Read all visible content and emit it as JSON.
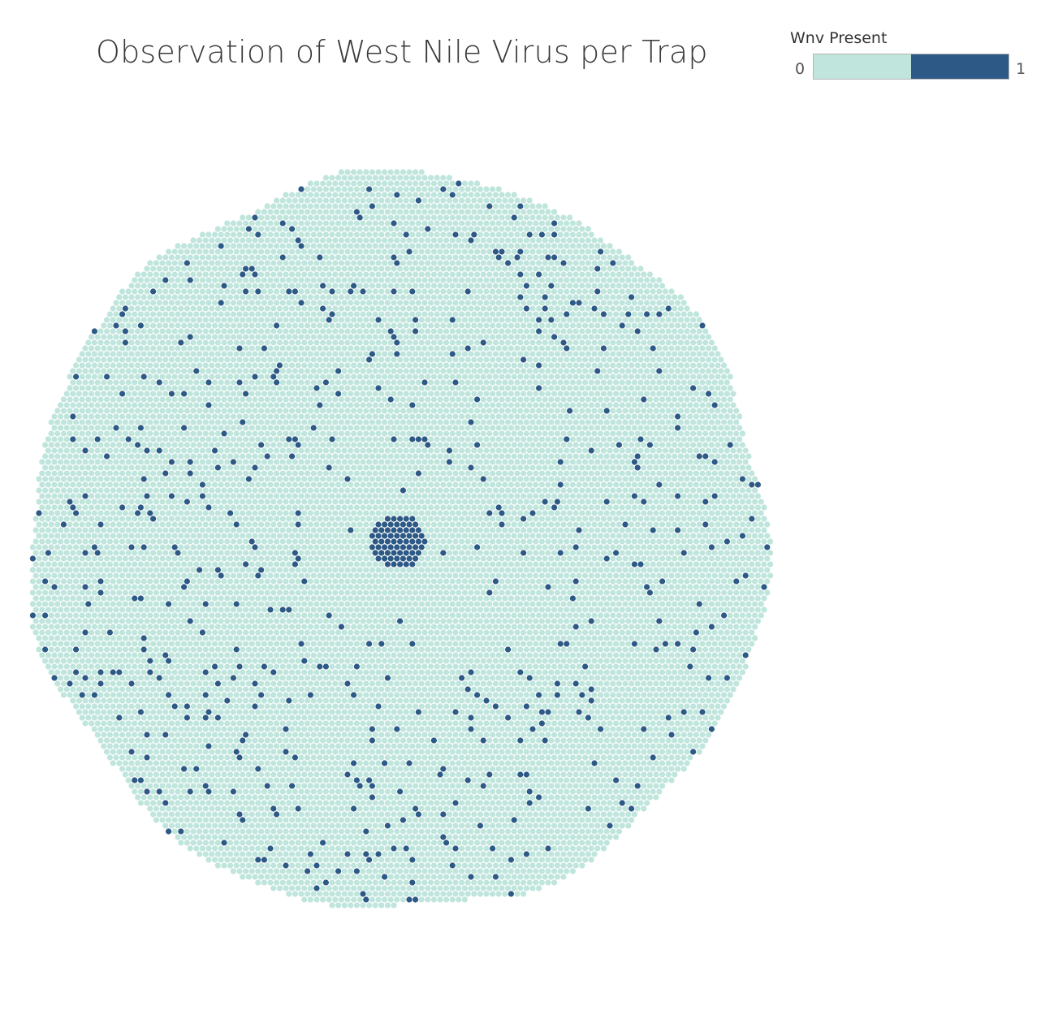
{
  "chart_data": {
    "type": "scatter",
    "title": "Observation of West Nile Virus per Trap",
    "legend": {
      "title": "Wnv Present",
      "min_label": "0",
      "max_label": "1",
      "placement": "top-right",
      "categories": [
        {
          "value": 0,
          "color": "#bfe5dc"
        },
        {
          "value": 1,
          "color": "#2c5985"
        }
      ]
    },
    "layout_style": "circular packed grid of trap observations",
    "grid": false,
    "series": [
      {
        "value": 0,
        "share_estimate": 0.95
      },
      {
        "value": 1,
        "share_estimate": 0.05
      }
    ]
  },
  "colors": {
    "negative": "#bfe5dc",
    "positive": "#2c5985",
    "title": "#3a3a3a"
  }
}
